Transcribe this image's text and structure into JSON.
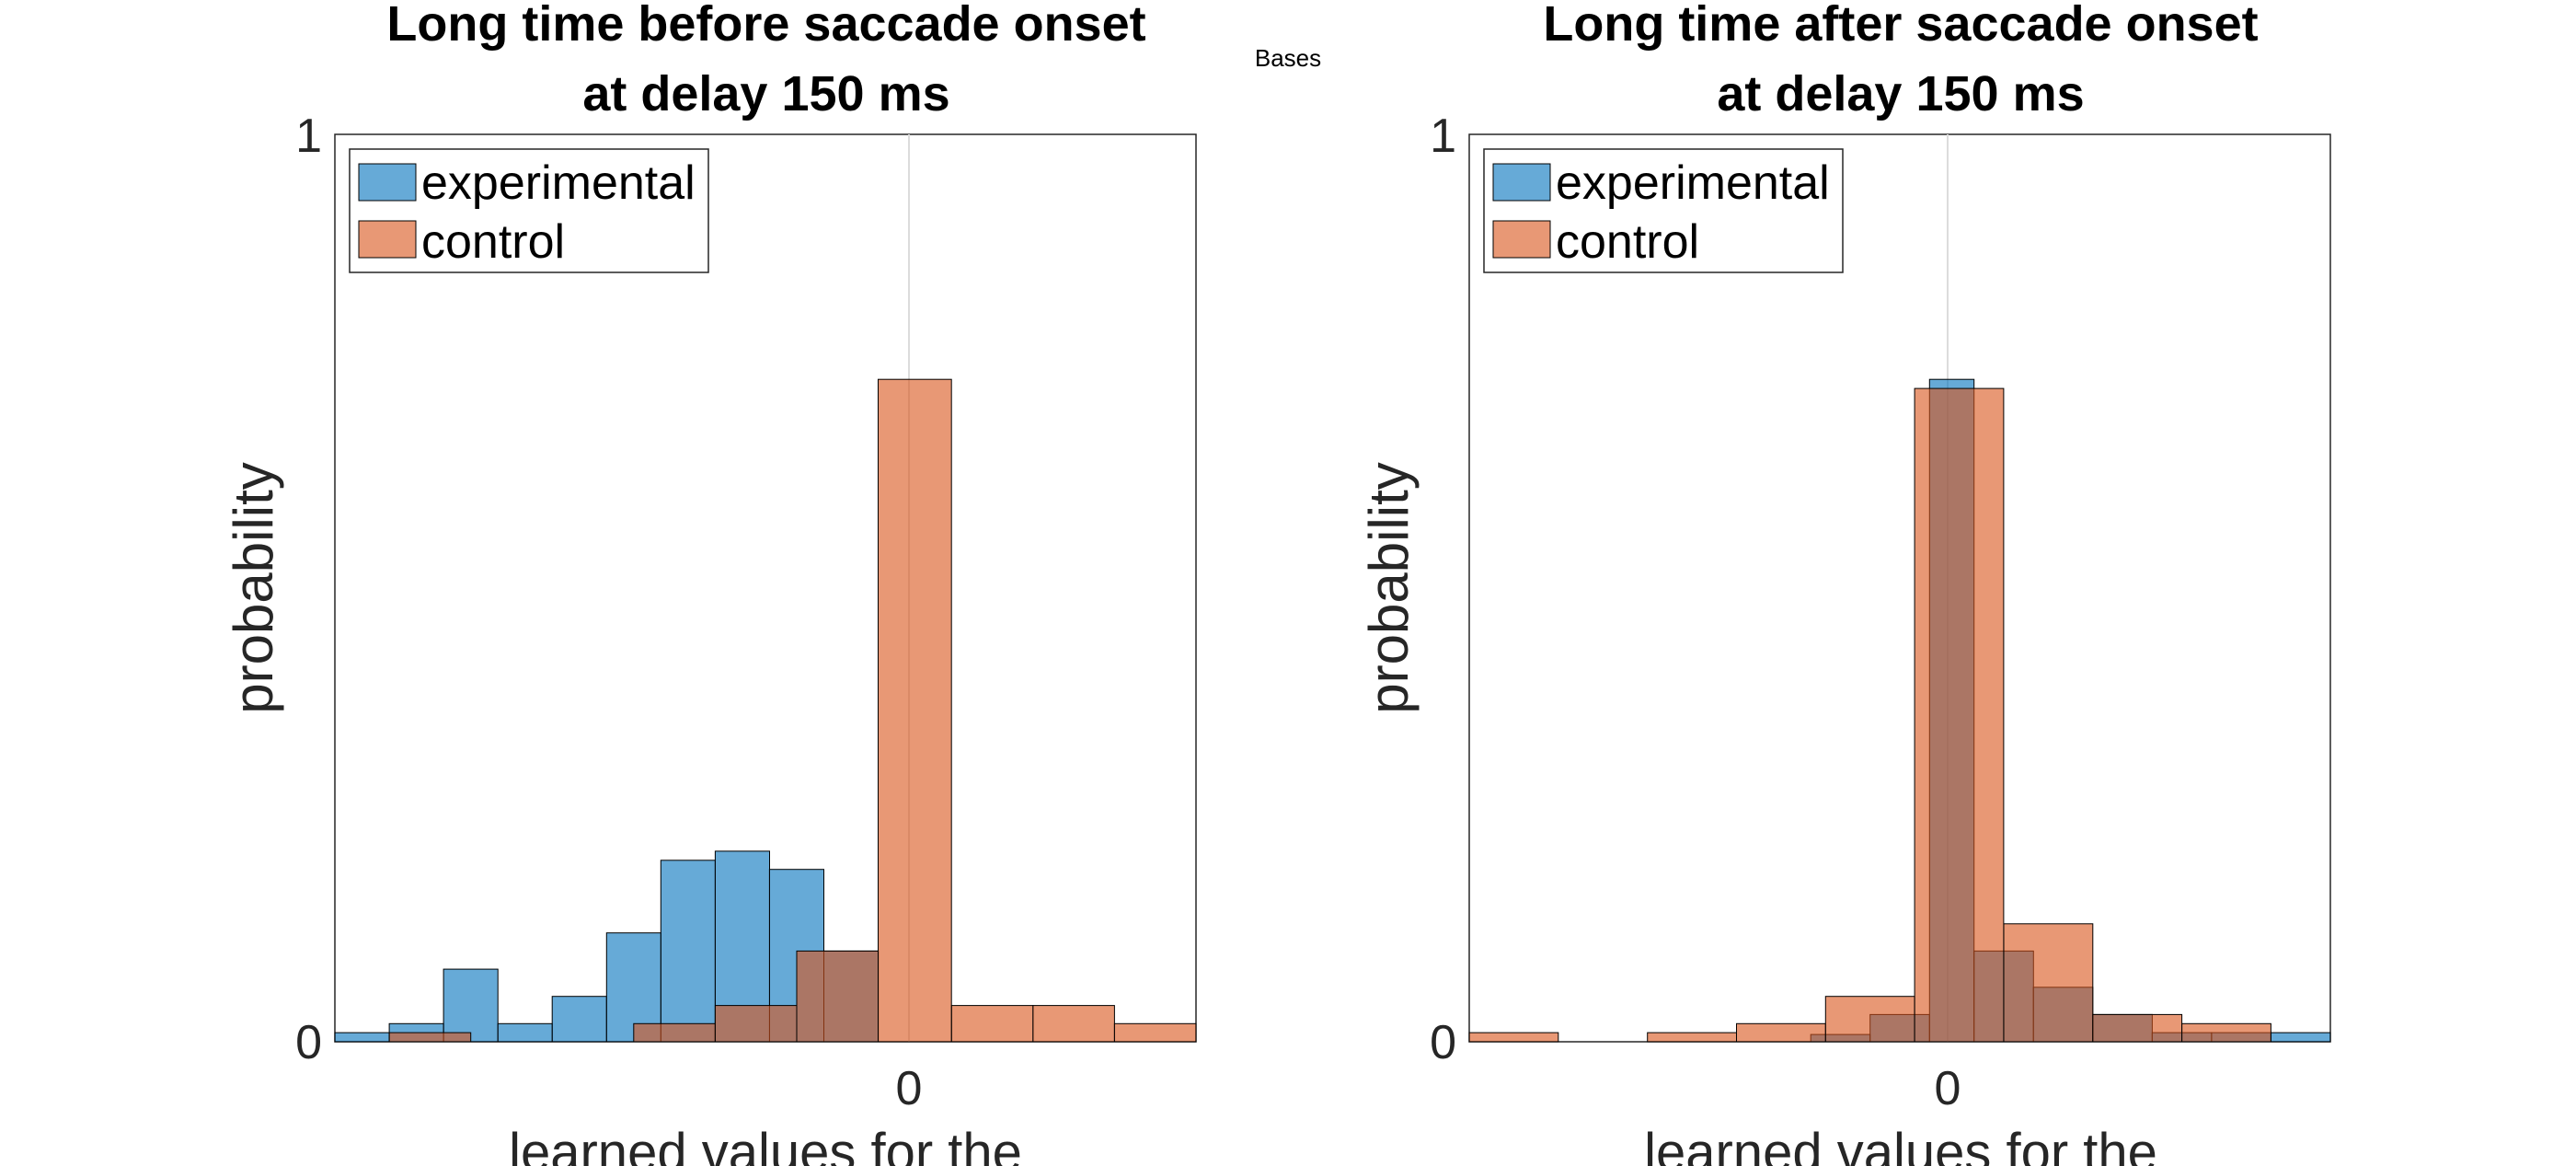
{
  "figure": {
    "supertitle": "Bases",
    "series_colors": {
      "experimental": "#0072BD",
      "control": "#D95319"
    },
    "bar_opacity": 0.6
  },
  "chart_data": [
    {
      "type": "bar",
      "title_lines": [
        "Long time before saccade onset",
        "at delay 150 ms"
      ],
      "ylabel": "probability",
      "xlabel": "learned values for the",
      "ylim": [
        0,
        1
      ],
      "yticks": [
        "0",
        "1"
      ],
      "xticks": [
        "0"
      ],
      "zero_line": true,
      "legend": {
        "location": "top-left",
        "entries": [
          "experimental",
          "control"
        ]
      },
      "series": [
        {
          "name": "experimental",
          "bin_width": 0.2,
          "bins": [
            {
              "x0": -2.1,
              "x1": -1.9,
              "y": 0.01
            },
            {
              "x0": -1.9,
              "x1": -1.7,
              "y": 0.02
            },
            {
              "x0": -1.7,
              "x1": -1.5,
              "y": 0.08
            },
            {
              "x0": -1.5,
              "x1": -1.3,
              "y": 0.02
            },
            {
              "x0": -1.3,
              "x1": -1.1,
              "y": 0.05
            },
            {
              "x0": -1.1,
              "x1": -0.9,
              "y": 0.12
            },
            {
              "x0": -0.9,
              "x1": -0.7,
              "y": 0.2
            },
            {
              "x0": -0.7,
              "x1": -0.5,
              "y": 0.21
            },
            {
              "x0": -0.5,
              "x1": -0.3,
              "y": 0.19
            },
            {
              "x0": -0.3,
              "x1": -0.1,
              "y": 0.1
            }
          ]
        },
        {
          "name": "control",
          "bin_width": 0.3,
          "bins": [
            {
              "x0": -1.9,
              "x1": -1.6,
              "y": 0.01
            },
            {
              "x0": -1.0,
              "x1": -0.7,
              "y": 0.02
            },
            {
              "x0": -0.7,
              "x1": -0.4,
              "y": 0.04
            },
            {
              "x0": -0.4,
              "x1": -0.1,
              "y": 0.1
            },
            {
              "x0": -0.1,
              "x1": 0.17,
              "y": 0.73
            },
            {
              "x0": 0.17,
              "x1": 0.47,
              "y": 0.04
            },
            {
              "x0": 0.47,
              "x1": 0.77,
              "y": 0.04
            },
            {
              "x0": 0.77,
              "x1": 1.07,
              "y": 0.02
            }
          ]
        }
      ],
      "xlim": [
        -2.1,
        1.07
      ]
    },
    {
      "type": "bar",
      "title_lines": [
        "Long time after saccade onset",
        "at delay 150 ms"
      ],
      "ylabel": "probability",
      "xlabel": "learned values for the",
      "ylim": [
        0,
        1
      ],
      "yticks": [
        "0",
        "1"
      ],
      "xticks": [
        "0"
      ],
      "zero_line": true,
      "legend": {
        "location": "top-left",
        "entries": [
          "experimental",
          "control"
        ]
      },
      "series": [
        {
          "name": "experimental",
          "bin_width": 0.1,
          "bins": [
            {
              "x0": -0.45,
              "x1": -0.25,
              "y": 0.008
            },
            {
              "x0": -0.25,
              "x1": -0.05,
              "y": 0.03
            },
            {
              "x0": -0.05,
              "x1": 0.1,
              "y": 0.73
            },
            {
              "x0": 0.1,
              "x1": 0.3,
              "y": 0.1
            },
            {
              "x0": 0.3,
              "x1": 0.5,
              "y": 0.06
            },
            {
              "x0": 0.5,
              "x1": 0.7,
              "y": 0.03
            },
            {
              "x0": 0.7,
              "x1": 0.9,
              "y": 0.01
            },
            {
              "x0": 0.9,
              "x1": 1.1,
              "y": 0.01
            },
            {
              "x0": 1.1,
              "x1": 1.3,
              "y": 0.01
            }
          ]
        },
        {
          "name": "control",
          "bin_width": 0.3,
          "bins": [
            {
              "x0": -1.6,
              "x1": -1.3,
              "y": 0.01
            },
            {
              "x0": -1.0,
              "x1": -0.7,
              "y": 0.01
            },
            {
              "x0": -0.7,
              "x1": -0.4,
              "y": 0.02
            },
            {
              "x0": -0.4,
              "x1": -0.1,
              "y": 0.05
            },
            {
              "x0": -0.1,
              "x1": 0.2,
              "y": 0.72
            },
            {
              "x0": 0.2,
              "x1": 0.5,
              "y": 0.13
            },
            {
              "x0": 0.5,
              "x1": 0.8,
              "y": 0.03
            },
            {
              "x0": 0.8,
              "x1": 1.1,
              "y": 0.02
            }
          ]
        }
      ],
      "xlim": [
        -1.6,
        1.3
      ]
    }
  ]
}
